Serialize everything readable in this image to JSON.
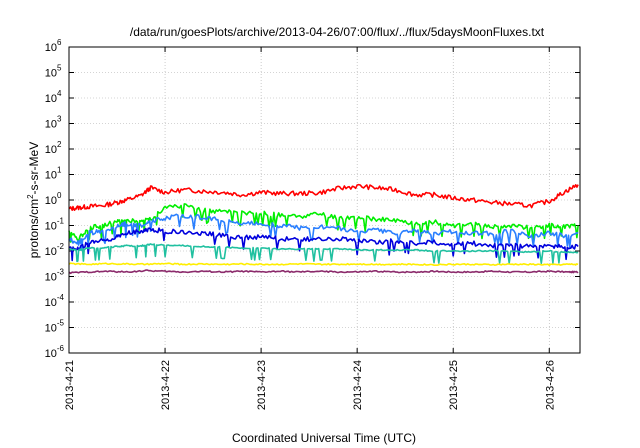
{
  "chart_data": {
    "type": "line",
    "title": "/data/run/goesPlots/archive/2013-04-26/07:00/flux/../flux/5daysMoonFluxes.txt",
    "xlabel": "Coordinated Universal Time (UTC)",
    "ylabel_base": "protons/cm",
    "ylabel_sup": "2",
    "ylabel_rest": "-s-sr-MeV",
    "x_ticks": [
      "2013-4-21",
      "2013-4-22",
      "2013-4-23",
      "2013-4-24",
      "2013-4-25",
      "2013-4-26"
    ],
    "y_scale": "log",
    "ylim": [
      1e-06,
      1000000.0
    ],
    "y_ticks": [
      {
        "base": "10",
        "exp": "-6"
      },
      {
        "base": "10",
        "exp": "-5"
      },
      {
        "base": "10",
        "exp": "-4"
      },
      {
        "base": "10",
        "exp": "-3"
      },
      {
        "base": "10",
        "exp": "-2"
      },
      {
        "base": "10",
        "exp": "-1"
      },
      {
        "base": "10",
        "exp": "0"
      },
      {
        "base": "10",
        "exp": "1"
      },
      {
        "base": "10",
        "exp": "2"
      },
      {
        "base": "10",
        "exp": "3"
      },
      {
        "base": "10",
        "exp": "4"
      },
      {
        "base": "10",
        "exp": "5"
      },
      {
        "base": "10",
        "exp": "6"
      }
    ],
    "grid": true,
    "series": [
      {
        "color": "#ff0000",
        "x": [
          0,
          0.1,
          0.2,
          0.35,
          0.5,
          0.6,
          0.75,
          0.85,
          1.0,
          1.2,
          1.4,
          1.6,
          1.8,
          2.0,
          2.2,
          2.4,
          2.6,
          2.8,
          3.0,
          3.2,
          3.4,
          3.6,
          3.8,
          4.0,
          4.2,
          4.4,
          4.6,
          4.8,
          5.0,
          5.15,
          5.3
        ],
        "y": [
          0.45,
          0.5,
          0.55,
          0.6,
          0.8,
          1.0,
          1.5,
          3.0,
          2.0,
          2.5,
          2.2,
          2.0,
          1.6,
          2.0,
          1.8,
          1.8,
          1.9,
          2.8,
          3.5,
          3.0,
          2.5,
          1.6,
          1.6,
          1.2,
          1.0,
          0.8,
          0.7,
          0.6,
          0.9,
          2.0,
          4.0
        ]
      },
      {
        "color": "#00ee00",
        "x": [
          0,
          0.1,
          0.2,
          0.35,
          0.5,
          0.6,
          0.75,
          0.85,
          1.0,
          1.2,
          1.4,
          1.6,
          1.8,
          2.0,
          2.2,
          2.4,
          2.6,
          2.8,
          3.0,
          3.2,
          3.4,
          3.6,
          3.8,
          4.0,
          4.2,
          4.4,
          4.6,
          4.8,
          5.0,
          5.15,
          5.3
        ],
        "y": [
          0.06,
          0.03,
          0.08,
          0.1,
          0.14,
          0.16,
          0.15,
          0.18,
          0.5,
          0.6,
          0.4,
          0.35,
          0.3,
          0.3,
          0.25,
          0.22,
          0.28,
          0.2,
          0.2,
          0.18,
          0.15,
          0.12,
          0.14,
          0.1,
          0.12,
          0.09,
          0.1,
          0.08,
          0.1,
          0.09,
          0.1
        ]
      },
      {
        "color": "#2a7fff",
        "x": [
          0,
          0.1,
          0.2,
          0.35,
          0.5,
          0.6,
          0.75,
          0.85,
          1.0,
          1.2,
          1.4,
          1.6,
          1.8,
          2.0,
          2.2,
          2.4,
          2.6,
          2.8,
          3.0,
          3.2,
          3.4,
          3.6,
          3.8,
          4.0,
          4.2,
          4.4,
          4.6,
          4.8,
          5.0,
          5.15,
          5.3
        ],
        "y": [
          0.03,
          0.02,
          0.05,
          0.06,
          0.1,
          0.12,
          0.1,
          0.14,
          0.2,
          0.25,
          0.2,
          0.16,
          0.12,
          0.12,
          0.1,
          0.08,
          0.09,
          0.08,
          0.06,
          0.07,
          0.05,
          0.06,
          0.05,
          0.06,
          0.05,
          0.05,
          0.06,
          0.04,
          0.05,
          0.04,
          0.05
        ]
      },
      {
        "color": "#0000dd",
        "x": [
          0,
          0.1,
          0.2,
          0.35,
          0.5,
          0.6,
          0.75,
          0.85,
          1.0,
          1.2,
          1.4,
          1.6,
          1.8,
          2.0,
          2.2,
          2.4,
          2.6,
          2.8,
          3.0,
          3.2,
          3.4,
          3.6,
          3.8,
          4.0,
          4.2,
          4.4,
          4.6,
          4.8,
          5.0,
          5.15,
          5.3
        ],
        "y": [
          0.015,
          0.012,
          0.02,
          0.025,
          0.035,
          0.05,
          0.06,
          0.07,
          0.06,
          0.055,
          0.05,
          0.04,
          0.035,
          0.035,
          0.03,
          0.03,
          0.028,
          0.03,
          0.025,
          0.022,
          0.025,
          0.02,
          0.022,
          0.018,
          0.02,
          0.016,
          0.018,
          0.015,
          0.016,
          0.014,
          0.015
        ]
      },
      {
        "color": "#20c0a0",
        "x": [
          0,
          0.1,
          0.2,
          0.35,
          0.5,
          0.6,
          0.75,
          0.85,
          1.0,
          1.2,
          1.4,
          1.6,
          1.8,
          2.0,
          2.2,
          2.4,
          2.6,
          2.8,
          3.0,
          3.2,
          3.4,
          3.6,
          3.8,
          4.0,
          4.2,
          4.4,
          4.6,
          4.8,
          5.0,
          5.15,
          5.3
        ],
        "y": [
          0.012,
          0.011,
          0.013,
          0.013,
          0.015,
          0.016,
          0.016,
          0.018,
          0.017,
          0.016,
          0.015,
          0.014,
          0.013,
          0.013,
          0.012,
          0.012,
          0.012,
          0.012,
          0.011,
          0.011,
          0.011,
          0.011,
          0.01,
          0.01,
          0.01,
          0.01,
          0.01,
          0.009,
          0.01,
          0.009,
          0.009
        ]
      },
      {
        "color": "#ffee00",
        "x": [
          0,
          0.2,
          0.4,
          0.6,
          0.8,
          1.0,
          1.2,
          1.4,
          1.6,
          1.8,
          2.0,
          2.2,
          2.4,
          2.6,
          2.8,
          3.0,
          3.2,
          3.4,
          3.6,
          3.8,
          4.0,
          4.2,
          4.4,
          4.6,
          4.8,
          5.0,
          5.2,
          5.3
        ],
        "y": [
          0.0032,
          0.003,
          0.0032,
          0.0031,
          0.003,
          0.0032,
          0.003,
          0.0031,
          0.003,
          0.0031,
          0.003,
          0.003,
          0.0031,
          0.003,
          0.003,
          0.0031,
          0.003,
          0.003,
          0.003,
          0.0029,
          0.003,
          0.003,
          0.0029,
          0.003,
          0.003,
          0.0029,
          0.003,
          0.003
        ]
      },
      {
        "color": "#8b2a6b",
        "x": [
          0,
          0.2,
          0.4,
          0.6,
          0.8,
          1.0,
          1.2,
          1.4,
          1.6,
          1.8,
          2.0,
          2.2,
          2.4,
          2.6,
          2.8,
          3.0,
          3.2,
          3.4,
          3.6,
          3.8,
          4.0,
          4.2,
          4.4,
          4.6,
          4.8,
          5.0,
          5.2,
          5.3
        ],
        "y": [
          0.0014,
          0.0015,
          0.0016,
          0.0015,
          0.0017,
          0.0016,
          0.0015,
          0.0016,
          0.0015,
          0.0016,
          0.0015,
          0.0016,
          0.0015,
          0.0016,
          0.0015,
          0.0015,
          0.0016,
          0.0015,
          0.0015,
          0.0016,
          0.0015,
          0.0015,
          0.0016,
          0.0015,
          0.0015,
          0.0016,
          0.0015,
          0.0015
        ]
      }
    ]
  }
}
